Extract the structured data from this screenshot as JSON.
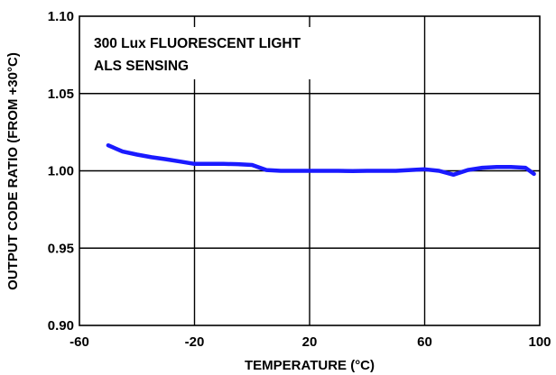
{
  "chart_data": {
    "type": "line",
    "title": "",
    "xlabel": "TEMPERATURE (°C)",
    "ylabel": "OUTPUT CODE RATIO (FROM +30°C)",
    "xlim": [
      -60,
      100
    ],
    "ylim": [
      0.9,
      1.1
    ],
    "grid": true,
    "annotation_lines": [
      "300 Lux FLUORESCENT LIGHT",
      "ALS SENSING"
    ],
    "x_ticks": [
      {
        "value": -60,
        "label": "-60"
      },
      {
        "value": -20,
        "label": "-20"
      },
      {
        "value": 20,
        "label": "20"
      },
      {
        "value": 60,
        "label": "60"
      },
      {
        "value": 100,
        "label": "100"
      }
    ],
    "y_ticks": [
      {
        "value": 0.9,
        "label": "0.90"
      },
      {
        "value": 0.95,
        "label": "0.95"
      },
      {
        "value": 1.0,
        "label": "1.00"
      },
      {
        "value": 1.05,
        "label": "1.05"
      },
      {
        "value": 1.1,
        "label": "1.10"
      }
    ],
    "series": [
      {
        "color": "#1a1aff",
        "x": [
          -50,
          -45,
          -40,
          -35,
          -30,
          -25,
          -20,
          -15,
          -10,
          -5,
          0,
          5,
          10,
          15,
          20,
          25,
          30,
          35,
          40,
          45,
          50,
          55,
          60,
          65,
          70,
          75,
          80,
          85,
          90,
          95,
          98
        ],
        "y": [
          1.0165,
          1.0125,
          1.0105,
          1.0088,
          1.0075,
          1.006,
          1.0045,
          1.0045,
          1.0045,
          1.0043,
          1.0038,
          1.0005,
          1.0,
          1.0,
          1.0,
          1.0,
          1.0,
          0.9998,
          1.0,
          1.0,
          1.0,
          1.0005,
          1.001,
          1.0,
          0.9975,
          1.0005,
          1.002,
          1.0025,
          1.0025,
          1.002,
          0.998
        ]
      }
    ]
  }
}
